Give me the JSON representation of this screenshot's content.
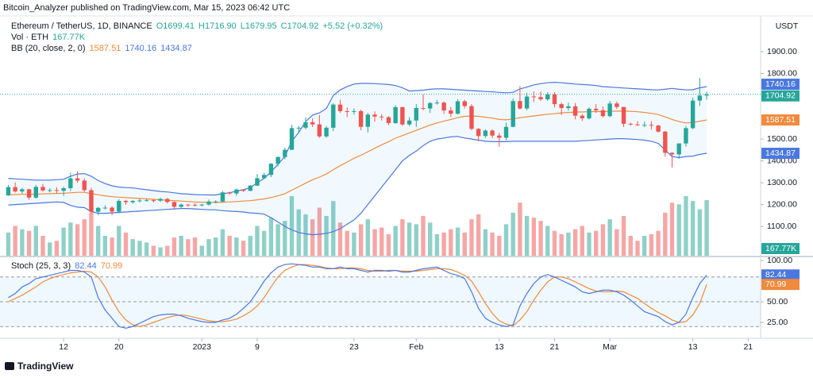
{
  "chart_data": {
    "type": "candlestick",
    "publisher": "Bitcoin_Analyzer published on TradingView.com, Mar 15, 2023 06:42 UTC",
    "symbol": "Ethereum / TetherUS, 1D, BINANCE",
    "ohlc_header": [
      "O1699.41",
      "H1716.90",
      "L1679.95",
      "C1704.92",
      "+5.52 (+0.32%)"
    ],
    "volume_title": "Vol · ETH",
    "volume_label": "167.77K",
    "bb_title": "BB (20, close, 2, 0)",
    "stoch_title": "Stoch (25, 3, 3)",
    "currency": "USDT",
    "brand": "TradingView",
    "up_color": "#26a69a",
    "down_color": "#ef5350",
    "volume_up_color": "#8fd0c8",
    "volume_down_color": "#f5a7a5",
    "bb_basis_color": "#f08a3c",
    "bb_band_color": "#4a78e0",
    "stoch_k_color": "#4a78e0",
    "stoch_d_color": "#f08a3c",
    "xlim": [
      -1.2,
      108.8
    ],
    "xticks": [
      {
        "value": 8,
        "label": "12"
      },
      {
        "value": 16,
        "label": "20"
      },
      {
        "value": 28,
        "label": "2023"
      },
      {
        "value": 36,
        "label": "9"
      },
      {
        "value": 50,
        "label": "23"
      },
      {
        "value": 59,
        "label": "Feb"
      },
      {
        "value": 71,
        "label": "13"
      },
      {
        "value": 79,
        "label": "21"
      },
      {
        "value": 87,
        "label": "Mar"
      },
      {
        "value": 99,
        "label": "13"
      },
      {
        "value": 107,
        "label": "21"
      }
    ],
    "ylim": [
      966,
      2064
    ],
    "yticks": [
      {
        "value": 1100,
        "label": "1100.00"
      },
      {
        "value": 1200,
        "label": "1200.00"
      },
      {
        "value": 1300,
        "label": "1300.00"
      },
      {
        "value": 1400,
        "label": "1400.00"
      },
      {
        "value": 1500,
        "label": "1500.00"
      },
      {
        "value": 1800,
        "label": "1800.00"
      },
      {
        "value": 1900,
        "label": "1900.00"
      }
    ],
    "volume_ylim": [
      0,
      724
    ],
    "stoch_ylim": [
      0,
      100
    ],
    "stoch_yticks": [
      {
        "value": 100,
        "label": "100.00"
      },
      {
        "value": 50,
        "label": "50.00"
      },
      {
        "value": 25,
        "label": "25.00"
      }
    ],
    "stoch_bands": [
      20,
      50,
      80
    ],
    "candles": [
      [
        1242,
        1290,
        1240,
        1280
      ],
      [
        1280,
        1302,
        1255,
        1260
      ],
      [
        1260,
        1276,
        1250,
        1270
      ],
      [
        1270,
        1273,
        1222,
        1232
      ],
      [
        1232,
        1290,
        1228,
        1281
      ],
      [
        1281,
        1295,
        1260,
        1265
      ],
      [
        1265,
        1275,
        1256,
        1266
      ],
      [
        1266,
        1280,
        1250,
        1263
      ],
      [
        1263,
        1282,
        1240,
        1275
      ],
      [
        1275,
        1346,
        1262,
        1320
      ],
      [
        1320,
        1352,
        1300,
        1310
      ],
      [
        1310,
        1320,
        1258,
        1266
      ],
      [
        1266,
        1277,
        1160,
        1167
      ],
      [
        1167,
        1190,
        1152,
        1185
      ],
      [
        1185,
        1197,
        1178,
        1186
      ],
      [
        1186,
        1192,
        1152,
        1168
      ],
      [
        1168,
        1225,
        1160,
        1217
      ],
      [
        1217,
        1222,
        1200,
        1211
      ],
      [
        1211,
        1220,
        1204,
        1217
      ],
      [
        1217,
        1228,
        1210,
        1219
      ],
      [
        1219,
        1226,
        1214,
        1220
      ],
      [
        1220,
        1224,
        1210,
        1218
      ],
      [
        1218,
        1232,
        1212,
        1226
      ],
      [
        1226,
        1230,
        1205,
        1212
      ],
      [
        1212,
        1215,
        1182,
        1190
      ],
      [
        1190,
        1205,
        1185,
        1200
      ],
      [
        1200,
        1203,
        1190,
        1199
      ],
      [
        1199,
        1207,
        1192,
        1196
      ],
      [
        1196,
        1203,
        1192,
        1200
      ],
      [
        1200,
        1223,
        1196,
        1214
      ],
      [
        1214,
        1220,
        1206,
        1214
      ],
      [
        1214,
        1262,
        1212,
        1256
      ],
      [
        1256,
        1260,
        1245,
        1251
      ],
      [
        1251,
        1274,
        1240,
        1269
      ],
      [
        1269,
        1270,
        1258,
        1263
      ],
      [
        1263,
        1290,
        1261,
        1287
      ],
      [
        1287,
        1340,
        1285,
        1321
      ],
      [
        1321,
        1346,
        1316,
        1336
      ],
      [
        1336,
        1390,
        1326,
        1387
      ],
      [
        1387,
        1420,
        1375,
        1418
      ],
      [
        1418,
        1460,
        1408,
        1451
      ],
      [
        1451,
        1565,
        1450,
        1550
      ],
      [
        1550,
        1560,
        1526,
        1552
      ],
      [
        1552,
        1600,
        1545,
        1577
      ],
      [
        1577,
        1595,
        1555,
        1567
      ],
      [
        1567,
        1610,
        1505,
        1512
      ],
      [
        1512,
        1560,
        1506,
        1552
      ],
      [
        1552,
        1665,
        1536,
        1658
      ],
      [
        1658,
        1680,
        1620,
        1628
      ],
      [
        1628,
        1645,
        1600,
        1627
      ],
      [
        1627,
        1640,
        1612,
        1628
      ],
      [
        1628,
        1635,
        1540,
        1556
      ],
      [
        1556,
        1620,
        1530,
        1612
      ],
      [
        1612,
        1627,
        1580,
        1603
      ],
      [
        1603,
        1614,
        1585,
        1600
      ],
      [
        1600,
        1605,
        1563,
        1573
      ],
      [
        1573,
        1655,
        1570,
        1646
      ],
      [
        1646,
        1648,
        1560,
        1567
      ],
      [
        1567,
        1600,
        1560,
        1585
      ],
      [
        1585,
        1660,
        1555,
        1642
      ],
      [
        1642,
        1705,
        1632,
        1640
      ],
      [
        1640,
        1670,
        1620,
        1665
      ],
      [
        1665,
        1680,
        1658,
        1667
      ],
      [
        1667,
        1672,
        1615,
        1631
      ],
      [
        1631,
        1647,
        1600,
        1616
      ],
      [
        1616,
        1683,
        1612,
        1673
      ],
      [
        1673,
        1680,
        1640,
        1651
      ],
      [
        1651,
        1660,
        1540,
        1547
      ],
      [
        1547,
        1550,
        1490,
        1514
      ],
      [
        1514,
        1545,
        1505,
        1539
      ],
      [
        1539,
        1545,
        1505,
        1516
      ],
      [
        1516,
        1528,
        1465,
        1506
      ],
      [
        1506,
        1575,
        1494,
        1556
      ],
      [
        1556,
        1685,
        1554,
        1674
      ],
      [
        1674,
        1742,
        1635,
        1640
      ],
      [
        1640,
        1712,
        1632,
        1695
      ],
      [
        1695,
        1718,
        1670,
        1692
      ],
      [
        1692,
        1718,
        1675,
        1682
      ],
      [
        1682,
        1715,
        1675,
        1704
      ],
      [
        1704,
        1715,
        1645,
        1660
      ],
      [
        1660,
        1667,
        1610,
        1642
      ],
      [
        1642,
        1667,
        1630,
        1650
      ],
      [
        1650,
        1665,
        1590,
        1607
      ],
      [
        1607,
        1615,
        1583,
        1595
      ],
      [
        1595,
        1645,
        1590,
        1639
      ],
      [
        1639,
        1660,
        1620,
        1632
      ],
      [
        1632,
        1650,
        1598,
        1605
      ],
      [
        1605,
        1675,
        1600,
        1663
      ],
      [
        1663,
        1672,
        1638,
        1647
      ],
      [
        1647,
        1648,
        1555,
        1570
      ],
      [
        1570,
        1575,
        1562,
        1567
      ],
      [
        1567,
        1582,
        1560,
        1565
      ],
      [
        1565,
        1580,
        1555,
        1565
      ],
      [
        1565,
        1582,
        1543,
        1562
      ],
      [
        1562,
        1565,
        1530,
        1534
      ],
      [
        1534,
        1537,
        1420,
        1437
      ],
      [
        1437,
        1440,
        1370,
        1430
      ],
      [
        1430,
        1480,
        1410,
        1480
      ],
      [
        1480,
        1560,
        1465,
        1550
      ],
      [
        1550,
        1690,
        1545,
        1676
      ],
      [
        1676,
        1780,
        1652,
        1699
      ],
      [
        1699.41,
        1716.9,
        1679.95,
        1704.92
      ]
    ],
    "volume": [
      70,
      90,
      80,
      75,
      90,
      60,
      40,
      45,
      85,
      100,
      95,
      110,
      130,
      90,
      60,
      55,
      90,
      70,
      50,
      45,
      40,
      30,
      25,
      30,
      55,
      60,
      50,
      55,
      30,
      50,
      55,
      80,
      60,
      55,
      45,
      60,
      90,
      75,
      115,
      95,
      105,
      180,
      140,
      125,
      110,
      145,
      120,
      165,
      100,
      75,
      70,
      95,
      110,
      80,
      85,
      65,
      90,
      110,
      100,
      95,
      120,
      100,
      65,
      70,
      80,
      85,
      70,
      110,
      125,
      80,
      70,
      60,
      95,
      130,
      160,
      120,
      115,
      105,
      90,
      75,
      65,
      70,
      80,
      90,
      70,
      75,
      95,
      110,
      80,
      120,
      60,
      45,
      60,
      65,
      75,
      130,
      160,
      155,
      180,
      165,
      140,
      167.77
    ],
    "bb": {
      "basis": [
        1245,
        1246,
        1247,
        1247,
        1248,
        1249,
        1250,
        1251,
        1252,
        1254,
        1256,
        1256,
        1250,
        1245,
        1240,
        1236,
        1234,
        1232,
        1230,
        1228,
        1226,
        1224,
        1222,
        1220,
        1218,
        1216,
        1214,
        1212,
        1211,
        1210,
        1210,
        1211,
        1212,
        1214,
        1216,
        1218,
        1222,
        1226,
        1232,
        1240,
        1250,
        1266,
        1282,
        1298,
        1314,
        1326,
        1340,
        1360,
        1378,
        1395,
        1412,
        1426,
        1442,
        1458,
        1474,
        1488,
        1504,
        1516,
        1528,
        1540,
        1552,
        1564,
        1574,
        1582,
        1590,
        1598,
        1604,
        1606,
        1604,
        1600,
        1596,
        1590,
        1588,
        1592,
        1598,
        1602,
        1606,
        1610,
        1614,
        1616,
        1620,
        1622,
        1624,
        1624,
        1625,
        1626,
        1626,
        1627,
        1628,
        1628,
        1627,
        1625,
        1622,
        1618,
        1612,
        1602,
        1590,
        1580,
        1574,
        1576,
        1582,
        1587.51
      ],
      "upper": [
        1320,
        1318,
        1316,
        1314,
        1312,
        1312,
        1312,
        1314,
        1316,
        1330,
        1340,
        1342,
        1330,
        1310,
        1296,
        1286,
        1280,
        1278,
        1276,
        1272,
        1268,
        1264,
        1260,
        1258,
        1254,
        1250,
        1248,
        1246,
        1245,
        1244,
        1244,
        1250,
        1254,
        1262,
        1268,
        1278,
        1300,
        1320,
        1350,
        1385,
        1420,
        1490,
        1530,
        1580,
        1610,
        1620,
        1640,
        1700,
        1725,
        1740,
        1752,
        1755,
        1755,
        1754,
        1752,
        1750,
        1745,
        1735,
        1720,
        1722,
        1724,
        1728,
        1730,
        1730,
        1728,
        1726,
        1724,
        1722,
        1720,
        1718,
        1716,
        1714,
        1712,
        1714,
        1730,
        1738,
        1748,
        1754,
        1758,
        1760,
        1758,
        1755,
        1752,
        1750,
        1748,
        1745,
        1740,
        1738,
        1736,
        1734,
        1732,
        1730,
        1728,
        1726,
        1725,
        1728,
        1732,
        1728,
        1725,
        1726,
        1735,
        1740.16
      ],
      "lower": [
        1198,
        1200,
        1202,
        1204,
        1206,
        1208,
        1210,
        1212,
        1210,
        1196,
        1188,
        1186,
        1168,
        1160,
        1160,
        1162,
        1164,
        1166,
        1168,
        1170,
        1172,
        1174,
        1176,
        1178,
        1180,
        1182,
        1182,
        1180,
        1178,
        1176,
        1176,
        1172,
        1170,
        1168,
        1166,
        1162,
        1160,
        1156,
        1140,
        1120,
        1100,
        1084,
        1072,
        1066,
        1062,
        1064,
        1068,
        1076,
        1090,
        1110,
        1130,
        1160,
        1200,
        1240,
        1280,
        1320,
        1360,
        1400,
        1425,
        1445,
        1470,
        1490,
        1500,
        1505,
        1510,
        1512,
        1505,
        1500,
        1495,
        1490,
        1488,
        1488,
        1488,
        1490,
        1490,
        1490,
        1490,
        1490,
        1490,
        1490,
        1490,
        1490,
        1490,
        1492,
        1494,
        1496,
        1498,
        1500,
        1502,
        1502,
        1500,
        1498,
        1495,
        1490,
        1480,
        1450,
        1420,
        1415,
        1420,
        1422,
        1430,
        1434.87
      ]
    },
    "stoch": {
      "k": [
        55,
        60,
        68,
        72,
        78,
        80,
        82,
        84,
        86,
        88,
        88,
        86,
        80,
        55,
        40,
        30,
        20,
        18,
        20,
        24,
        28,
        32,
        34,
        35,
        35,
        33,
        30,
        28,
        26,
        25,
        25,
        28,
        30,
        35,
        42,
        50,
        62,
        75,
        85,
        92,
        95,
        96,
        95,
        94,
        92,
        92,
        90,
        90,
        92,
        90,
        90,
        88,
        86,
        88,
        88,
        87,
        88,
        86,
        86,
        88,
        90,
        91,
        92,
        88,
        84,
        82,
        78,
        62,
        42,
        30,
        25,
        22,
        20,
        22,
        45,
        60,
        72,
        80,
        83,
        80,
        76,
        72,
        68,
        62,
        60,
        62,
        64,
        64,
        62,
        58,
        52,
        45,
        38,
        35,
        32,
        26,
        22,
        25,
        35,
        55,
        72,
        82.44
      ],
      "d": [
        50,
        54,
        58,
        63,
        68,
        74,
        78,
        81,
        83,
        85,
        86,
        87,
        86,
        80,
        68,
        52,
        38,
        28,
        22,
        20,
        22,
        25,
        28,
        31,
        33,
        34,
        33,
        31,
        29,
        27,
        26,
        26,
        27,
        29,
        33,
        38,
        45,
        55,
        68,
        80,
        88,
        92,
        95,
        95,
        94,
        93,
        91,
        90,
        90,
        91,
        91,
        90,
        88,
        87,
        87,
        88,
        88,
        87,
        87,
        87,
        88,
        89,
        90,
        90,
        89,
        86,
        82,
        75,
        62,
        48,
        36,
        27,
        23,
        21,
        28,
        38,
        52,
        64,
        74,
        80,
        80,
        78,
        74,
        70,
        66,
        63,
        62,
        62,
        63,
        62,
        58,
        54,
        48,
        42,
        37,
        33,
        28,
        25,
        26,
        34,
        48,
        70.99
      ]
    }
  }
}
